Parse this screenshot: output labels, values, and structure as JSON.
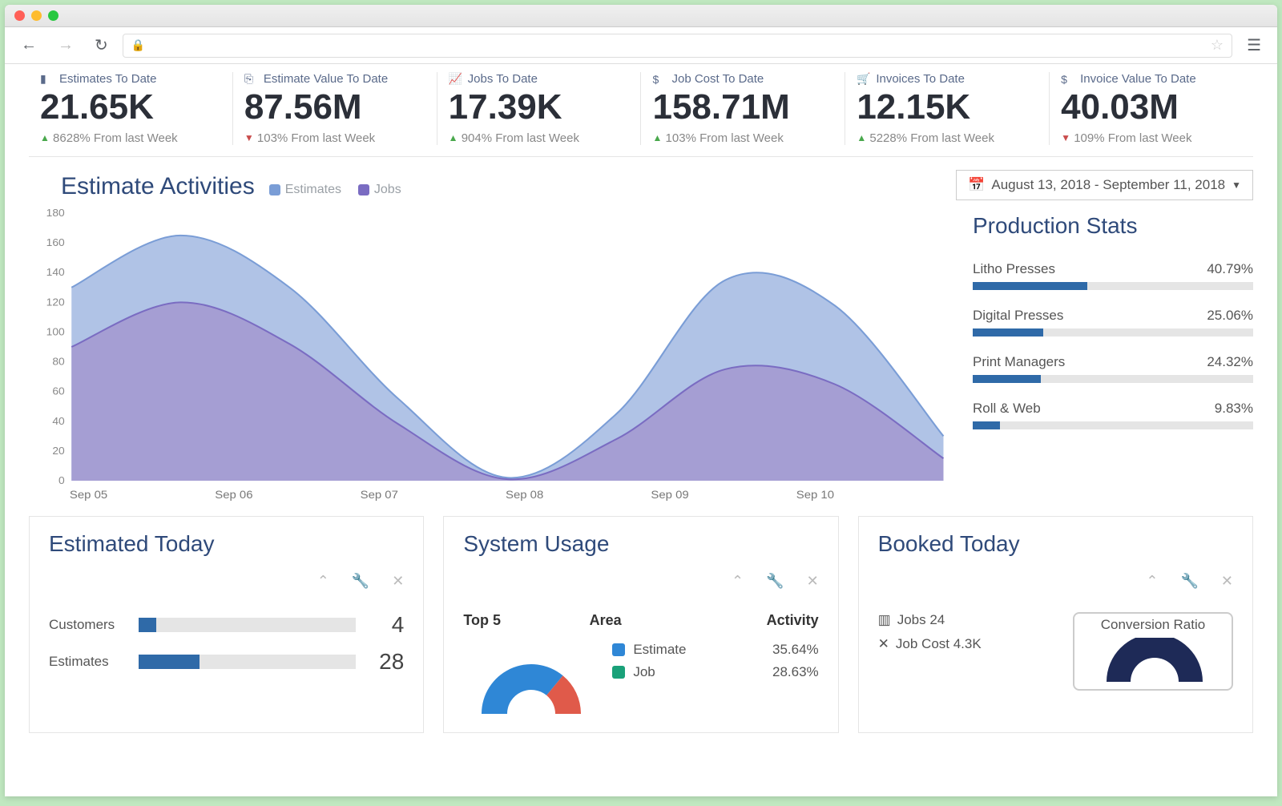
{
  "colors": {
    "heading": "#2f4a7a",
    "value": "#2b2f38",
    "bar_fill": "#2f6aa8",
    "bar_bg": "#e5e5e5",
    "up": "#49a84c",
    "down": "#c94c4c"
  },
  "kpis": [
    {
      "icon": "file",
      "label": "Estimates To Date",
      "value": "21.65K",
      "dir": "up",
      "delta": "8628% From last Week"
    },
    {
      "icon": "card",
      "label": "Estimate Value To Date",
      "value": "87.56M",
      "dir": "down",
      "delta": "103% From last Week"
    },
    {
      "icon": "chart",
      "label": "Jobs To Date",
      "value": "17.39K",
      "dir": "up",
      "delta": "904% From last Week"
    },
    {
      "icon": "dollar",
      "label": "Job Cost To Date",
      "value": "158.71M",
      "dir": "up",
      "delta": "103% From last Week"
    },
    {
      "icon": "cart",
      "label": "Invoices To Date",
      "value": "12.15K",
      "dir": "up",
      "delta": "5228% From last Week"
    },
    {
      "icon": "dollar",
      "label": "Invoice Value To Date",
      "value": "40.03M",
      "dir": "down",
      "delta": "109% From last Week"
    }
  ],
  "chart": {
    "title": "Estimate Activities",
    "legend": [
      {
        "label": "Estimates",
        "color": "#7a9dd6"
      },
      {
        "label": "Jobs",
        "color": "#7a6cc2"
      }
    ],
    "date_range": "August 13, 2018 - September 11, 2018",
    "type": "area",
    "x_labels": [
      "Sep 05",
      "Sep 06",
      "Sep 07",
      "Sep 08",
      "Sep 09",
      "Sep 10"
    ],
    "y_ticks": [
      0,
      20,
      40,
      60,
      80,
      100,
      120,
      140,
      160,
      180
    ],
    "ylim": [
      0,
      180
    ],
    "background": "#ffffff",
    "grid_color": "#f0f0f0",
    "series": [
      {
        "name": "Estimates",
        "color_fill": "#a2b8e2",
        "color_stroke": "#7a9dd6",
        "points": [
          130,
          165,
          130,
          55,
          2,
          45,
          135,
          118,
          30
        ]
      },
      {
        "name": "Jobs",
        "color_fill": "#a398cf",
        "color_stroke": "#7a6cc2",
        "points": [
          90,
          120,
          92,
          38,
          1,
          28,
          75,
          65,
          15
        ]
      }
    ]
  },
  "production_stats": {
    "title": "Production Stats",
    "items": [
      {
        "label": "Litho Presses",
        "pct": 40.79,
        "pct_text": "40.79%"
      },
      {
        "label": "Digital Presses",
        "pct": 25.06,
        "pct_text": "25.06%"
      },
      {
        "label": "Print Managers",
        "pct": 24.32,
        "pct_text": "24.32%"
      },
      {
        "label": "Roll & Web",
        "pct": 9.83,
        "pct_text": "9.83%"
      }
    ]
  },
  "estimated_today": {
    "title": "Estimated Today",
    "rows": [
      {
        "label": "Customers",
        "pct": 8,
        "value": "4"
      },
      {
        "label": "Estimates",
        "pct": 28,
        "value": "28"
      }
    ]
  },
  "system_usage": {
    "title": "System Usage",
    "headers": [
      "Top 5",
      "Area",
      "Activity"
    ],
    "donut_colors": [
      "#2f87d6",
      "#e05a4a",
      "#f2a73d",
      "#1aa179"
    ],
    "items": [
      {
        "label": "Estimate",
        "pct_text": "35.64%",
        "color": "#2f87d6"
      },
      {
        "label": "Job",
        "pct_text": "28.63%",
        "color": "#1aa179"
      }
    ]
  },
  "booked_today": {
    "title": "Booked Today",
    "lines": [
      {
        "icon": "bars",
        "text": "Jobs 24"
      },
      {
        "icon": "close",
        "text": "Job Cost 4.3K"
      }
    ],
    "conversion_title": "Conversion Ratio",
    "gauge_color": "#1e2a57"
  }
}
